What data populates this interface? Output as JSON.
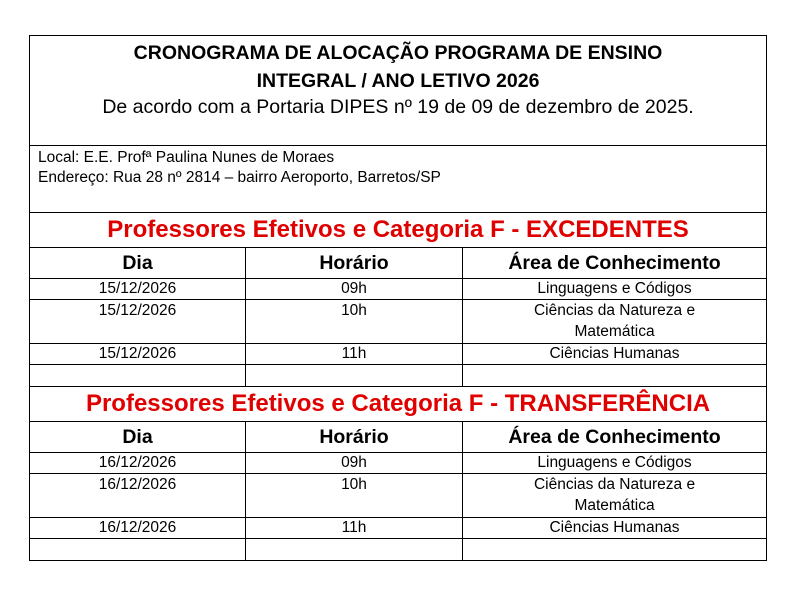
{
  "header": {
    "title_line1": "CRONOGRAMA DE ALOCAÇÃO PROGRAMA DE ENSINO",
    "title_line2": "INTEGRAL / ANO LETIVO 2026",
    "subtitle": "De acordo com a Portaria DIPES nº 19 de 09 de dezembro de 2025."
  },
  "info": {
    "local": "Local: E.E. Profª Paulina Nunes de Moraes",
    "endereco": "Endereço: Rua 28 nº 2814 – bairro Aeroporto, Barretos/SP"
  },
  "columns": [
    "Dia",
    "Horário",
    "Área de Conhecimento"
  ],
  "sections": [
    {
      "title": "Professores Efetivos e Categoria F - EXCEDENTES",
      "rows": [
        {
          "dia": "15/12/2026",
          "horario": "09h",
          "area": "Linguagens e Códigos"
        },
        {
          "dia": "15/12/2026",
          "horario": "10h",
          "area": "Ciências da Natureza e Matemática"
        },
        {
          "dia": "15/12/2026",
          "horario": "11h",
          "area": "Ciências Humanas"
        }
      ]
    },
    {
      "title": "Professores Efetivos e Categoria F - TRANSFERÊNCIA",
      "rows": [
        {
          "dia": "16/12/2026",
          "horario": "09h",
          "area": "Linguagens e Códigos"
        },
        {
          "dia": "16/12/2026",
          "horario": "10h",
          "area": "Ciências da Natureza e Matemática"
        },
        {
          "dia": "16/12/2026",
          "horario": "11h",
          "area": "Ciências Humanas"
        }
      ]
    }
  ],
  "colors": {
    "section_title": "#e00000",
    "text": "#000000"
  }
}
